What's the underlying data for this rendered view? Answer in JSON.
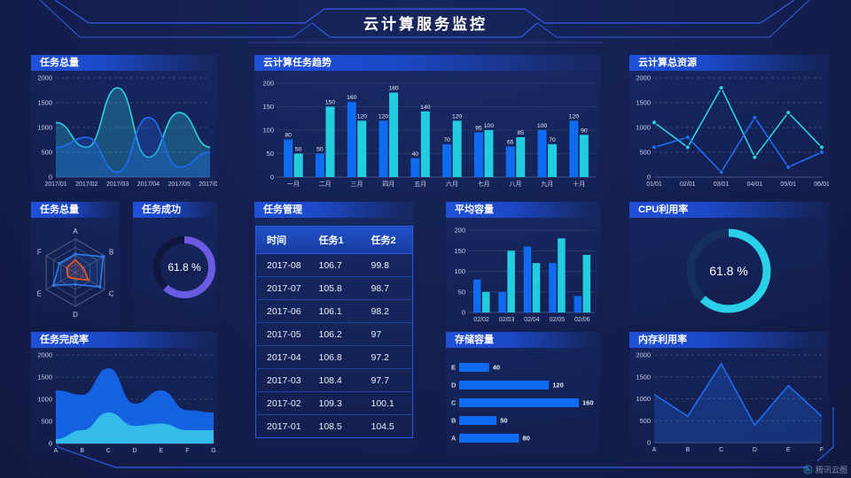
{
  "title": "云计算服务监控",
  "watermark": "腾讯云图",
  "colors": {
    "accent": "#2e5ce6",
    "background": "#131f4e",
    "series_blue": "#0f6bf0",
    "series_cyan": "#23cde0",
    "gauge_purple": "#6a5be2"
  },
  "chart_data": [
    {
      "id": "tasks-total-trend",
      "type": "area",
      "title": "任务总量",
      "smooth": true,
      "grid": "dashed",
      "x": [
        "2017/01",
        "2017/02",
        "2017/03",
        "2017/04",
        "2017/05",
        "2017/06"
      ],
      "series": [
        {
          "name": "cyan",
          "color": "#2ad1e2",
          "values": [
            1100,
            600,
            1800,
            400,
            1300,
            600
          ]
        },
        {
          "name": "blue",
          "color": "#1f6df2",
          "values": [
            600,
            800,
            100,
            1200,
            200,
            500
          ]
        }
      ],
      "ylim": [
        0,
        2000
      ],
      "yticks": [
        0,
        500,
        1000,
        1500,
        2000
      ]
    },
    {
      "id": "cloud-task-trend",
      "type": "bar",
      "title": "云计算任务趋势",
      "grid": "solid",
      "show_values": true,
      "categories": [
        "一月",
        "二月",
        "三月",
        "四月",
        "五月",
        "六月",
        "七月",
        "八月",
        "九月",
        "十月"
      ],
      "series": [
        {
          "name": "blue",
          "color": "#0f6bf0",
          "values": [
            80,
            50,
            160,
            120,
            40,
            70,
            95,
            65,
            100,
            120
          ]
        },
        {
          "name": "cyan",
          "color": "#23cde0",
          "values": [
            50,
            150,
            120,
            180,
            140,
            120,
            100,
            85,
            70,
            90
          ]
        }
      ],
      "ylim": [
        0,
        200
      ],
      "yticks": [
        0,
        50,
        100,
        150,
        200
      ]
    },
    {
      "id": "cloud-total-resources",
      "type": "line",
      "title": "云计算总资源",
      "grid": "dashed",
      "markers": true,
      "x": [
        "01/01",
        "02/01",
        "03/01",
        "04/01",
        "05/01",
        "06/01"
      ],
      "series": [
        {
          "name": "cyan",
          "color": "#2ad1e2",
          "values": [
            1100,
            600,
            1800,
            400,
            1300,
            600
          ]
        },
        {
          "name": "blue",
          "color": "#1f6df2",
          "values": [
            600,
            800,
            100,
            1200,
            200,
            500
          ]
        }
      ],
      "ylim": [
        0,
        2000
      ],
      "yticks": [
        0,
        500,
        1000,
        1500,
        2000
      ]
    },
    {
      "id": "tasks-total-radar",
      "type": "radar",
      "title": "任务总量",
      "max": 100,
      "axes": [
        "A",
        "B",
        "C",
        "D",
        "E",
        "F"
      ],
      "series": [
        {
          "name": "blue",
          "color": "#2d7df0",
          "values": [
            55,
            95,
            85,
            35,
            75,
            55
          ]
        },
        {
          "name": "orange",
          "color": "#ff5722",
          "values": [
            38,
            28,
            45,
            18,
            25,
            30
          ]
        }
      ]
    },
    {
      "id": "task-success-gauge",
      "type": "donut",
      "title": "任务成功",
      "value": 61.8,
      "label": "61.8 %",
      "color": "#6a5be2",
      "track": "#10173f"
    },
    {
      "id": "task-table",
      "type": "table",
      "title": "任务管理",
      "columns": [
        "时间",
        "任务1",
        "任务2"
      ],
      "rows": [
        [
          "2017-08",
          "106.7",
          "99.8"
        ],
        [
          "2017-07",
          "105.8",
          "98.7"
        ],
        [
          "2017-06",
          "106.1",
          "98.2"
        ],
        [
          "2017-05",
          "106.2",
          "97"
        ],
        [
          "2017-04",
          "106.8",
          "97.2"
        ],
        [
          "2017-03",
          "108.4",
          "97.7"
        ],
        [
          "2017-02",
          "109.3",
          "100.1"
        ],
        [
          "2017-01",
          "108.5",
          "104.5"
        ]
      ]
    },
    {
      "id": "avg-capacity",
      "type": "bar",
      "title": "平均容量",
      "grid": "solid",
      "show_values": false,
      "categories": [
        "02/02",
        "02/03",
        "02/04",
        "02/05",
        "02/06"
      ],
      "series": [
        {
          "name": "blue",
          "color": "#0f6bf0",
          "values": [
            80,
            50,
            160,
            120,
            40
          ]
        },
        {
          "name": "cyan",
          "color": "#23cde0",
          "values": [
            50,
            150,
            120,
            180,
            140
          ]
        }
      ],
      "ylim": [
        0,
        200
      ],
      "yticks": [
        0,
        50,
        100,
        150,
        200
      ]
    },
    {
      "id": "cpu-usage-gauge",
      "type": "donut",
      "title": "CPU利用率",
      "value": 61.8,
      "label": "61.8 %",
      "color": "#29d0e8",
      "track": "#16305f"
    },
    {
      "id": "task-completion",
      "type": "stacked-area",
      "title": "任务完成率",
      "smooth": true,
      "grid": "dashed",
      "x": [
        "A",
        "B",
        "C",
        "D",
        "E",
        "F",
        "G"
      ],
      "series": [
        {
          "name": "blue",
          "color": "#1565e8",
          "values": [
            1200,
            1100,
            1700,
            900,
            1200,
            750,
            700
          ]
        },
        {
          "name": "cyan",
          "color": "#35c0e8",
          "values": [
            100,
            300,
            700,
            400,
            450,
            300,
            300
          ]
        }
      ],
      "ylim": [
        0,
        2000
      ],
      "yticks": [
        0,
        500,
        1000,
        1500,
        2000
      ]
    },
    {
      "id": "storage-capacity",
      "type": "hbar",
      "title": "存储容量",
      "color": "#0f6bf0",
      "max": 160,
      "categories": [
        "E",
        "D",
        "C",
        "B",
        "A"
      ],
      "values": [
        40,
        120,
        160,
        50,
        80
      ]
    },
    {
      "id": "memory-usage",
      "type": "line",
      "title": "内存利用率",
      "grid": "dashed",
      "markers": false,
      "x": [
        "A",
        "B",
        "C",
        "D",
        "E",
        "F"
      ],
      "series": [
        {
          "name": "blue",
          "color": "#1f6df2",
          "values": [
            1100,
            600,
            1800,
            400,
            1300,
            600
          ],
          "fill": true
        }
      ],
      "ylim": [
        0,
        2000
      ],
      "yticks": [
        0,
        500,
        1000,
        1500,
        2000
      ]
    }
  ]
}
